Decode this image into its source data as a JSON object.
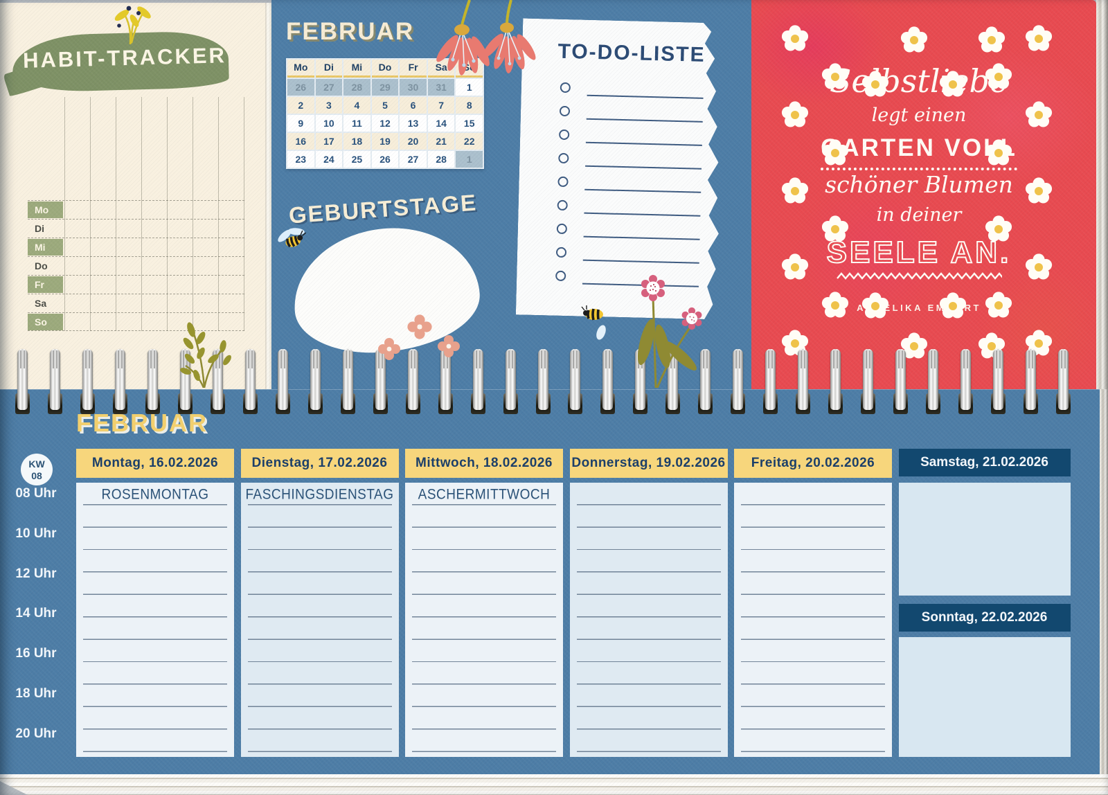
{
  "top_page": {
    "habit_tracker": {
      "title": "HABIT-TRACKER",
      "days": [
        "Mo",
        "Di",
        "Mi",
        "Do",
        "Fr",
        "Sa",
        "So"
      ]
    },
    "mini_calendar": {
      "title": "FEBRUAR",
      "weekday_headers": [
        "Mo",
        "Di",
        "Mi",
        "Do",
        "Fr",
        "Sa",
        "So"
      ],
      "weeks": [
        [
          {
            "d": "26",
            "muted": true
          },
          {
            "d": "27",
            "muted": true
          },
          {
            "d": "28",
            "muted": true
          },
          {
            "d": "29",
            "muted": true
          },
          {
            "d": "30",
            "muted": true
          },
          {
            "d": "31",
            "muted": true
          },
          {
            "d": "1",
            "muted": false
          }
        ],
        [
          {
            "d": "2"
          },
          {
            "d": "3"
          },
          {
            "d": "4"
          },
          {
            "d": "5"
          },
          {
            "d": "6"
          },
          {
            "d": "7"
          },
          {
            "d": "8"
          }
        ],
        [
          {
            "d": "9"
          },
          {
            "d": "10"
          },
          {
            "d": "11"
          },
          {
            "d": "12"
          },
          {
            "d": "13"
          },
          {
            "d": "14"
          },
          {
            "d": "15"
          }
        ],
        [
          {
            "d": "16"
          },
          {
            "d": "17"
          },
          {
            "d": "18"
          },
          {
            "d": "19"
          },
          {
            "d": "20"
          },
          {
            "d": "21"
          },
          {
            "d": "22"
          }
        ],
        [
          {
            "d": "23"
          },
          {
            "d": "24"
          },
          {
            "d": "25"
          },
          {
            "d": "26"
          },
          {
            "d": "27"
          },
          {
            "d": "28"
          },
          {
            "d": "1",
            "muted": true
          }
        ]
      ],
      "cream_rows": [
        1,
        3
      ]
    },
    "birthdays": {
      "title": "GEBURTSTAGE"
    },
    "todo": {
      "title": "TO-DO-LISTE",
      "rows": 9
    },
    "quote": {
      "lines": [
        {
          "text": "Selbstliebe",
          "style": "q-script-xl"
        },
        {
          "text": "legt einen",
          "style": "q-script"
        },
        {
          "text": "GARTEN VOLL",
          "style": "q-caps"
        },
        {
          "text": "schöner Blumen",
          "style": "q-script-lg"
        },
        {
          "text": "in deiner",
          "style": "q-script"
        },
        {
          "text": "SEELE AN.",
          "style": "q-outline"
        }
      ],
      "author": "ANGELIKA EMMERT",
      "background_color": "#e84a50",
      "text_color": "#fffdf6"
    }
  },
  "bottom_page": {
    "month_title": "FEBRUAR",
    "week_badge": {
      "line1": "KW",
      "line2": "08"
    },
    "time_labels": [
      "08 Uhr",
      "10 Uhr",
      "12 Uhr",
      "14 Uhr",
      "16 Uhr",
      "18 Uhr",
      "20 Uhr"
    ],
    "weekday_columns": [
      {
        "header": "Montag, 16.02.2026",
        "note": "ROSENMONTAG"
      },
      {
        "header": "Dienstag, 17.02.2026",
        "note": "FASCHINGSDIENSTAG"
      },
      {
        "header": "Mittwoch, 18.02.2026",
        "note": "ASCHERMITTWOCH"
      },
      {
        "header": "Donnerstag, 19.02.2026",
        "note": ""
      },
      {
        "header": "Freitag, 20.02.2026",
        "note": ""
      }
    ],
    "weekend_columns": [
      {
        "header": "Samstag, 21.02.2026"
      },
      {
        "header": "Sonntag, 22.02.2026"
      }
    ],
    "header_color": "#f7d67c",
    "weekend_header_color": "#12486f",
    "page_color": "#4d7da6"
  }
}
